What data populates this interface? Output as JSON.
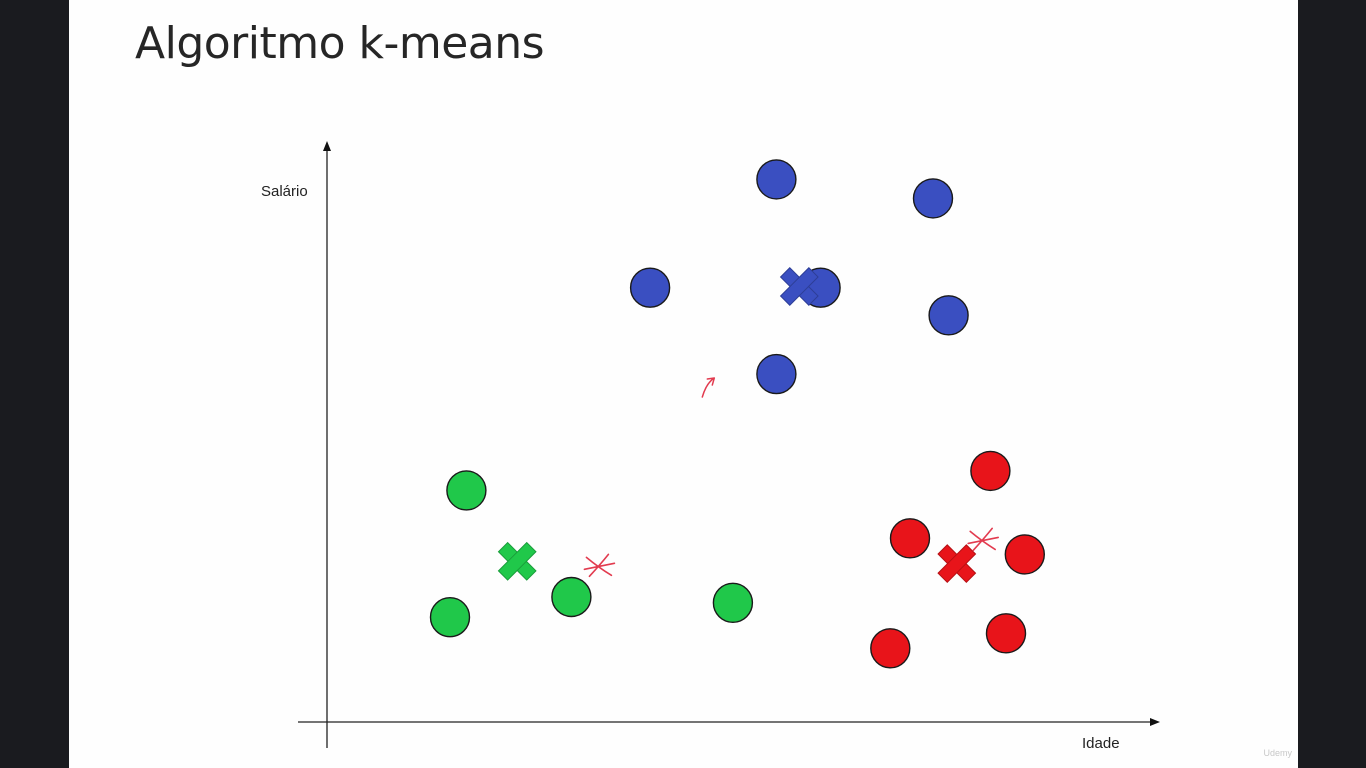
{
  "slide": {
    "title": "Algoritmo k-means",
    "watermark": "Udemy"
  },
  "chart_data": {
    "type": "scatter",
    "xlabel": "Idade",
    "ylabel": "Salário",
    "xlim": [
      0,
      100
    ],
    "ylim": [
      0,
      100
    ],
    "grid": false,
    "legend": "none",
    "series": [
      {
        "color": "#3a4fc1",
        "points": [
          {
            "x": 54.8,
            "y": 94.2
          },
          {
            "x": 73.9,
            "y": 90.9
          },
          {
            "x": 39.4,
            "y": 75.4
          },
          {
            "x": 60.2,
            "y": 75.4
          },
          {
            "x": 75.8,
            "y": 70.6
          },
          {
            "x": 54.8,
            "y": 60.4
          }
        ],
        "centroid": {
          "x": 57.6,
          "y": 75.6
        }
      },
      {
        "color": "#e8141a",
        "points": [
          {
            "x": 80.9,
            "y": 43.6
          },
          {
            "x": 71.1,
            "y": 31.9
          },
          {
            "x": 85.1,
            "y": 29.1
          },
          {
            "x": 82.8,
            "y": 15.4
          },
          {
            "x": 68.7,
            "y": 12.8
          }
        ],
        "centroid": {
          "x": 76.8,
          "y": 27.5
        }
      },
      {
        "color": "#20c84a",
        "points": [
          {
            "x": 17.0,
            "y": 40.2
          },
          {
            "x": 29.8,
            "y": 21.7
          },
          {
            "x": 15.0,
            "y": 18.2
          },
          {
            "x": 49.5,
            "y": 20.7
          }
        ],
        "centroid": {
          "x": 23.2,
          "y": 27.9
        }
      }
    ],
    "annotations": [
      {
        "type": "old-centroid-mark",
        "color": "#e23b4f",
        "x": 33.1,
        "y": 27.2
      },
      {
        "type": "old-centroid-mark",
        "color": "#e23b4f",
        "x": 79.9,
        "y": 31.7
      },
      {
        "type": "arrow-mark",
        "color": "#e23b4f",
        "x": 46.5,
        "y": 58.5
      }
    ]
  }
}
